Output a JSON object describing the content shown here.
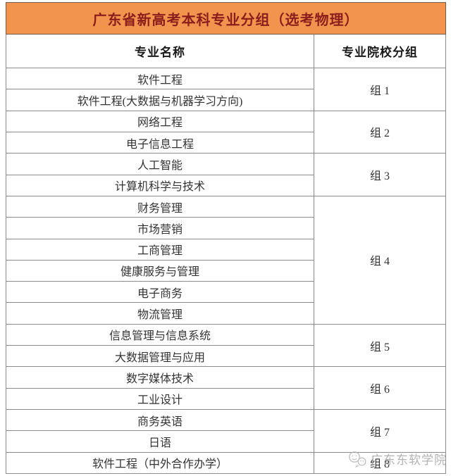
{
  "title": "广东省新高考本科专业分组（选考物理）",
  "columns": {
    "major": "专业名称",
    "group": "专业院校分组"
  },
  "groups": [
    {
      "label": "组 1",
      "majors": [
        "软件工程",
        "软件工程(大数据与机器学习方向)"
      ]
    },
    {
      "label": "组 2",
      "majors": [
        "网络工程",
        "电子信息工程"
      ]
    },
    {
      "label": "组 3",
      "majors": [
        "人工智能",
        "计算机科学与技术"
      ]
    },
    {
      "label": "组 4",
      "majors": [
        "财务管理",
        "市场营销",
        "工商管理",
        "健康服务与管理",
        "电子商务",
        "物流管理"
      ]
    },
    {
      "label": "组 5",
      "majors": [
        "信息管理与信息系统",
        "大数据管理与应用"
      ]
    },
    {
      "label": "组 6",
      "majors": [
        "数字媒体技术",
        "工业设计"
      ]
    },
    {
      "label": "组 7",
      "majors": [
        "商务英语",
        "日语"
      ]
    },
    {
      "label": "组 8",
      "majors": [
        "软件工程（中外合作办学）"
      ]
    }
  ],
  "watermark": {
    "text": "广东东软学院",
    "logo": "chat-bubbles-logo-icon"
  },
  "colors": {
    "title_bg": "#F2944D",
    "title_text": "#8B1D1D",
    "border": "#8c8c8c",
    "body_text": "#333333",
    "watermark_text": "#b3b3b3"
  }
}
